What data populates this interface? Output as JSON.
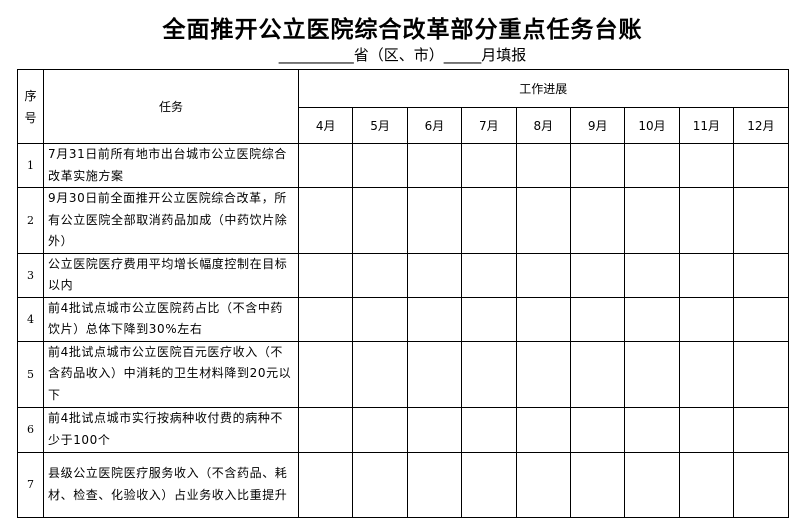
{
  "title": "全面推开公立医院综合改革部分重点任务台账",
  "subtitle": "__________省（区、市）_____月填报",
  "headers": {
    "no": "序号",
    "task": "任务",
    "progress": "工作进展",
    "months": [
      "4月",
      "5月",
      "6月",
      "7月",
      "8月",
      "9月",
      "10月",
      "11月",
      "12月"
    ]
  },
  "rows": [
    {
      "no": "1",
      "task": "7月31日前所有地市出台城市公立医院综合改革实施方案"
    },
    {
      "no": "2",
      "task": "9月30日前全面推开公立医院综合改革，所有公立医院全部取消药品加成（中药饮片除外）"
    },
    {
      "no": "3",
      "task": "公立医院医疗费用平均增长幅度控制在目标以内"
    },
    {
      "no": "4",
      "task": "前4批试点城市公立医院药占比（不含中药饮片）总体下降到30%左右"
    },
    {
      "no": "5",
      "task": "前4批试点城市公立医院百元医疗收入（不含药品收入）中消耗的卫生材料降到20元以下"
    },
    {
      "no": "6",
      "task": "前4批试点城市实行按病种收付费的病种不少于100个"
    },
    {
      "no": "7",
      "task": "县级公立医院医疗服务收入（不含药品、耗材、检查、化验收入）占业务收入比重提升"
    }
  ]
}
